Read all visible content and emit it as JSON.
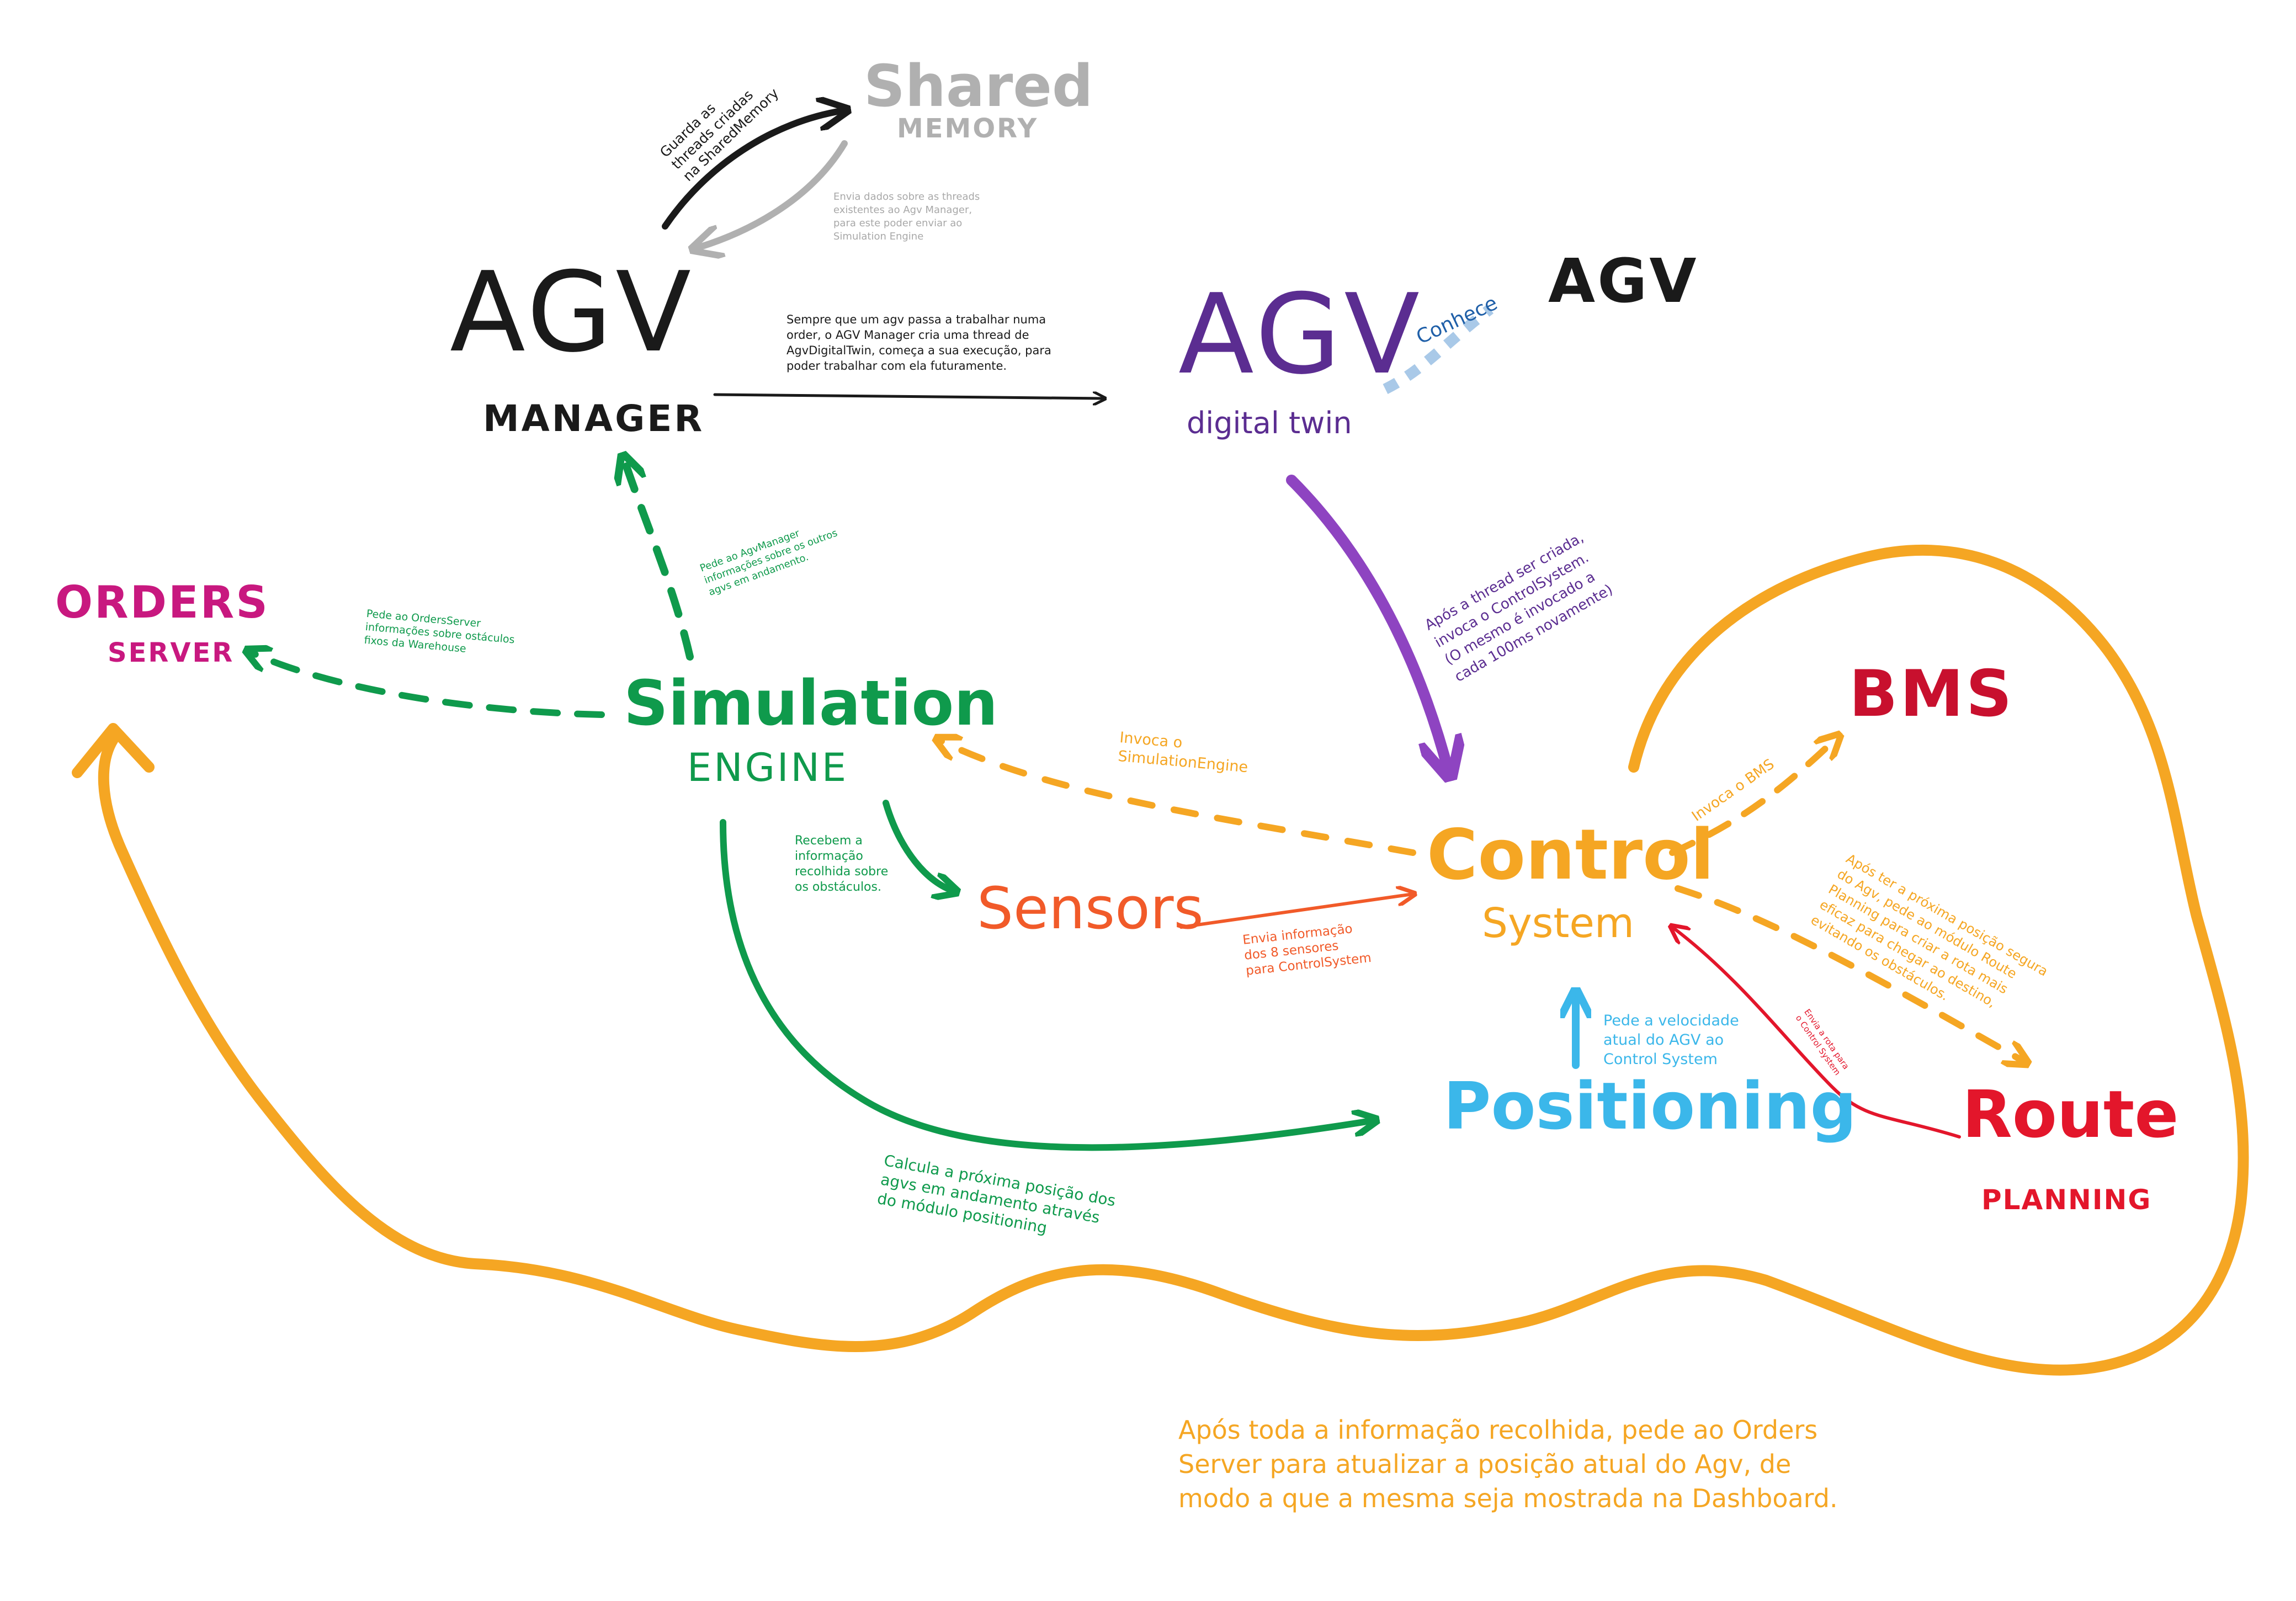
{
  "colors": {
    "black": "#1a1a1a",
    "gray": "#b0b0b0",
    "purple": "#5b2d91",
    "green": "#0f9a4c",
    "orange": "#f5a623",
    "red_orange": "#f15a29",
    "magenta": "#c8187f",
    "crimson": "#c8102e",
    "red": "#e3162b",
    "sky": "#3bb7ea",
    "light_blue": "#a9c9e8",
    "blue": "#1f5fa8"
  },
  "nodes": {
    "agv_manager": {
      "title": "AGV",
      "subtitle": "MANAGER"
    },
    "shared_memory": {
      "title": "Shared",
      "subtitle": "MEMORY"
    },
    "agv_digital_twin": {
      "title": "AGV",
      "subtitle": "digital twin"
    },
    "agv": {
      "title": "AGV"
    },
    "orders_server": {
      "title": "ORDERS",
      "subtitle": "SERVER"
    },
    "simulation_engine": {
      "title": "Simulation",
      "subtitle": "ENGINE"
    },
    "control_system": {
      "title": "Control",
      "subtitle": "System"
    },
    "sensors": {
      "title": "Sensors"
    },
    "bms": {
      "title": "BMS"
    },
    "positioning": {
      "title": "Positioning"
    },
    "route_planning": {
      "title": "Route",
      "subtitle": "PLANNING"
    }
  },
  "notes": {
    "guarda_threads": "Guarda as\nthreads criadas\nna SharedMemory",
    "envia_dados_threads": "Envia dados sobre as threads\nexistentes ao Agv Manager,\npara este poder enviar ao\nSimulation Engine",
    "sempre_que_agv": "Sempre que um agv passa a trabalhar numa\norder, o AGV Manager cria uma thread de\nAgvDigitalTwin, começa a sua execução, para\npoder trabalhar com ela futuramente.",
    "conhece": "Conhece",
    "apos_thread_criada": "Após a thread ser criada,\ninvoca o ControlSystem.\n(O mesmo é invocado a\ncada 100ms novamente)",
    "pede_agv_manager": "Pede ao AgvManager\ninformações sobre os outros\nagvs em andamento.",
    "pede_orders_server": "Pede ao OrdersServer\ninformações sobre ostáculos\nfixos da Warehouse",
    "invoca_simulation": "Invoca o\nSimulationEngine",
    "invoca_bms": "Invoca o BMS",
    "recebem_info": "Recebem a\ninformação\nrecolhida sobre\nos obstáculos.",
    "envia_info_sensores": "Envia informação\ndos 8 sensores\npara ControlSystem",
    "apos_proxima_posicao": "Após ter a próxima posição segura\ndo Agv, pede ao módulo Route\nPlanning para criar a rota mais\neficaz para chegar ao destino,\nevitando os obstáculos.",
    "envia_rota": "Envia a rota para\no Control System",
    "pede_velocidade": "Pede a velocidade\natual do AGV ao\nControl System",
    "calcula_proxima": "Calcula a próxima posição dos\nagvs em andamento através\ndo módulo positioning",
    "apos_toda_info": "Após toda a informação recolhida, pede ao Orders\nServer para atualizar a posição atual do Agv, de\nmodo a que a mesma seja mostrada na Dashboard."
  }
}
